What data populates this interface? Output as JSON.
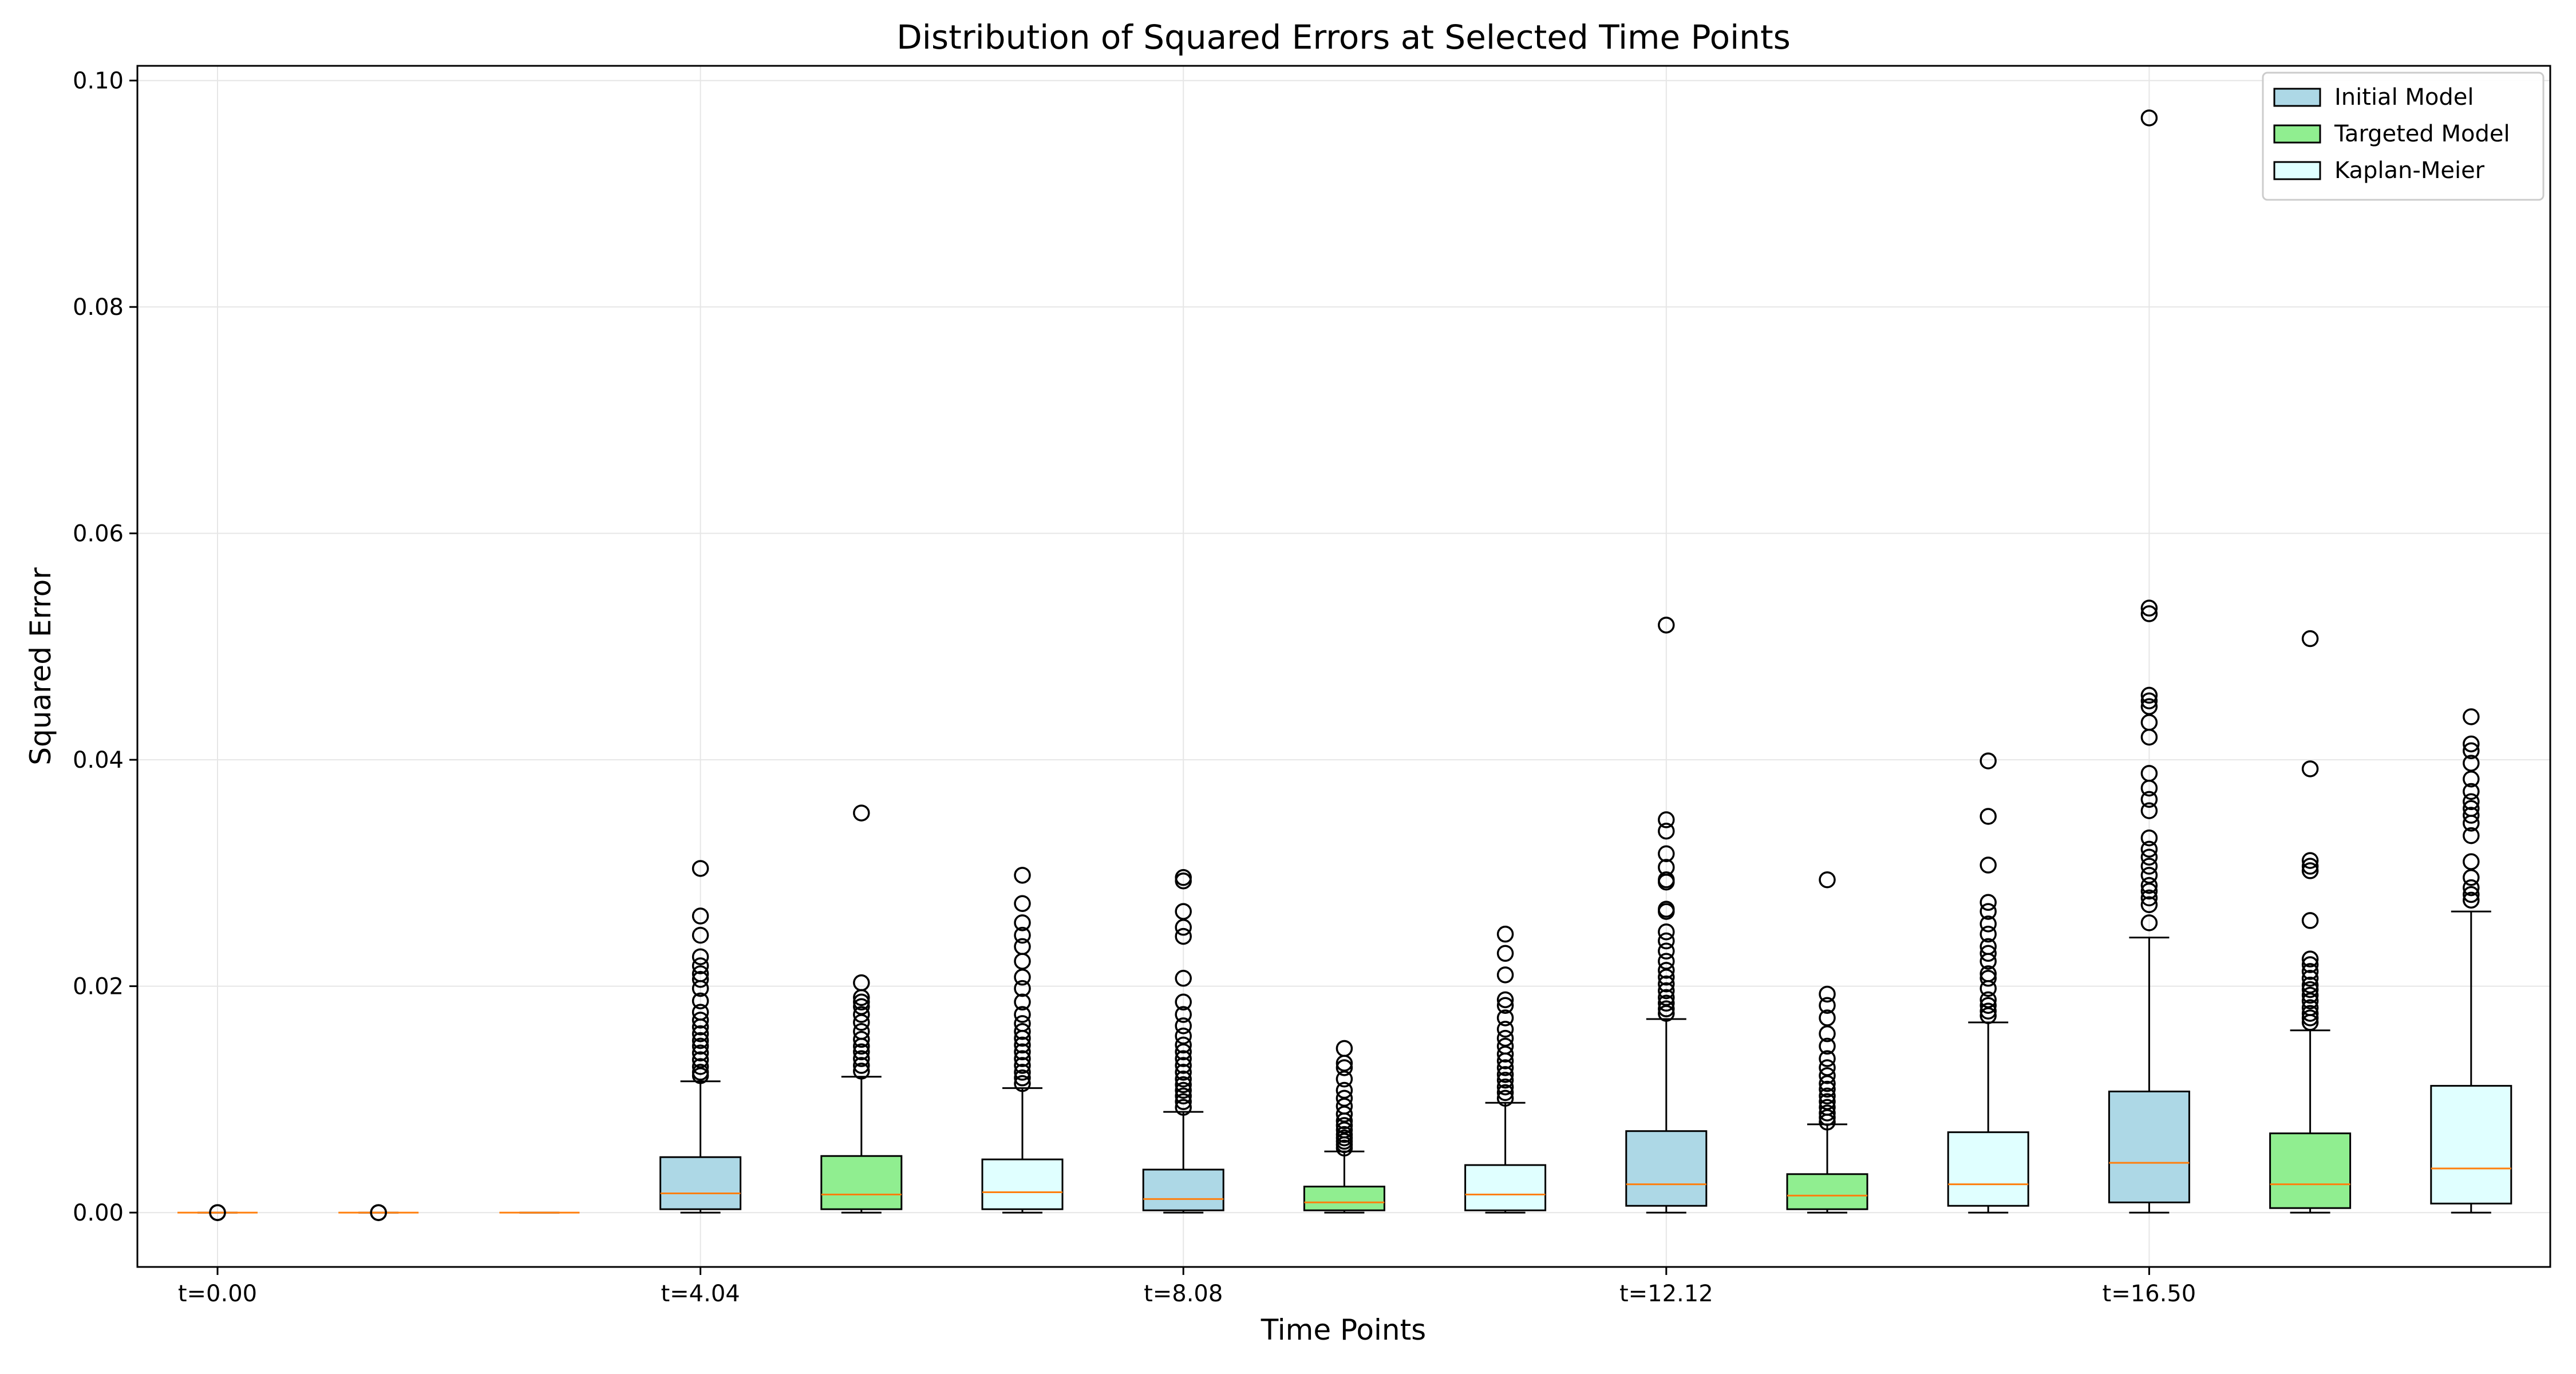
{
  "chart_data": {
    "type": "box",
    "title": "Distribution of Squared Errors at Selected Time Points",
    "xlabel": "Time Points",
    "ylabel": "Squared Error",
    "ylim": [
      -0.0048,
      0.1013
    ],
    "y_ticks": [
      0.0,
      0.02,
      0.04,
      0.06,
      0.08,
      0.1
    ],
    "y_tick_labels": [
      "0.00",
      "0.02",
      "0.04",
      "0.06",
      "0.08",
      "0.10"
    ],
    "x_tick_labels": [
      "t=0.00",
      "t=4.04",
      "t=8.08",
      "t=12.12",
      "t=16.50"
    ],
    "grid": true,
    "legend_position": "top-right",
    "colors": {
      "Initial Model": "#add8e6",
      "Targeted Model": "#90ee90",
      "Kaplan-Meier": "#e0ffff",
      "median": "#ff7f0e",
      "edge": "#000000",
      "grid": "#e6e6e6"
    },
    "series": [
      {
        "name": "Initial Model",
        "boxes": [
          {
            "time": "t=0.00",
            "q1": 0.0,
            "median": 0.0,
            "q3": 0.0,
            "whisker_low": 0.0,
            "whisker_high": 0.0,
            "outliers": [
              0.0,
              0.0
            ]
          },
          {
            "time": "t=4.04",
            "q1": 0.0003,
            "median": 0.0017,
            "q3": 0.0049,
            "whisker_low": 0.0,
            "whisker_high": 0.0116,
            "outliers": [
              0.0121,
              0.0124,
              0.0129,
              0.0135,
              0.0141,
              0.0147,
              0.0152,
              0.0158,
              0.0164,
              0.017,
              0.0177,
              0.0187,
              0.0198,
              0.0206,
              0.0211,
              0.0218,
              0.0226,
              0.0245,
              0.0262,
              0.0304
            ]
          },
          {
            "time": "t=8.08",
            "q1": 0.0002,
            "median": 0.0012,
            "q3": 0.0038,
            "whisker_low": 0.0,
            "whisker_high": 0.0089,
            "outliers": [
              0.0093,
              0.0098,
              0.0103,
              0.0108,
              0.0113,
              0.0118,
              0.0124,
              0.013,
              0.0136,
              0.0142,
              0.0148,
              0.0156,
              0.0165,
              0.0175,
              0.0186,
              0.0207,
              0.0244,
              0.0252,
              0.0266,
              0.0293,
              0.0296
            ]
          },
          {
            "time": "t=12.12",
            "q1": 0.0006,
            "median": 0.0025,
            "q3": 0.0072,
            "whisker_low": 0.0,
            "whisker_high": 0.0171,
            "outliers": [
              0.0176,
              0.018,
              0.0185,
              0.019,
              0.0196,
              0.0202,
              0.0208,
              0.0214,
              0.0222,
              0.0231,
              0.024,
              0.0248,
              0.0266,
              0.0268,
              0.0292,
              0.0294,
              0.0305,
              0.0317,
              0.0337,
              0.0347,
              0.0519
            ]
          },
          {
            "time": "t=16.50",
            "q1": 0.0009,
            "median": 0.0044,
            "q3": 0.0107,
            "whisker_low": 0.0,
            "whisker_high": 0.0243,
            "outliers": [
              0.0256,
              0.0272,
              0.0278,
              0.0284,
              0.0289,
              0.0298,
              0.0306,
              0.0314,
              0.0321,
              0.0331,
              0.0355,
              0.0365,
              0.0375,
              0.0388,
              0.042,
              0.0433,
              0.0447,
              0.0452,
              0.0457,
              0.0529,
              0.0534,
              0.0967
            ]
          }
        ]
      },
      {
        "name": "Targeted Model",
        "boxes": [
          {
            "time": "t=0.00",
            "q1": 0.0,
            "median": 0.0,
            "q3": 0.0,
            "whisker_low": 0.0,
            "whisker_high": 0.0,
            "outliers": [
              0.0,
              0.0
            ]
          },
          {
            "time": "t=4.04",
            "q1": 0.0003,
            "median": 0.0016,
            "q3": 0.005,
            "whisker_low": 0.0,
            "whisker_high": 0.012,
            "outliers": [
              0.0125,
              0.013,
              0.0136,
              0.0142,
              0.0147,
              0.0153,
              0.016,
              0.0168,
              0.0175,
              0.0182,
              0.0186,
              0.019,
              0.0203,
              0.0353
            ]
          },
          {
            "time": "t=8.08",
            "q1": 0.0002,
            "median": 0.0009,
            "q3": 0.0023,
            "whisker_low": 0.0,
            "whisker_high": 0.0054,
            "outliers": [
              0.0057,
              0.006,
              0.0063,
              0.0066,
              0.0069,
              0.0073,
              0.0077,
              0.0081,
              0.0087,
              0.0094,
              0.0101,
              0.0108,
              0.0118,
              0.0128,
              0.0132,
              0.0145
            ]
          },
          {
            "time": "t=12.12",
            "q1": 0.0003,
            "median": 0.0015,
            "q3": 0.0034,
            "whisker_low": 0.0,
            "whisker_high": 0.0078,
            "outliers": [
              0.008,
              0.0084,
              0.0088,
              0.0093,
              0.0098,
              0.0103,
              0.0109,
              0.0114,
              0.0121,
              0.0128,
              0.0136,
              0.0147,
              0.0158,
              0.0172,
              0.0183,
              0.0193,
              0.0294
            ]
          },
          {
            "time": "t=16.50",
            "q1": 0.0004,
            "median": 0.0025,
            "q3": 0.007,
            "whisker_low": 0.0,
            "whisker_high": 0.0161,
            "outliers": [
              0.0168,
              0.0172,
              0.0176,
              0.0181,
              0.0187,
              0.0192,
              0.0197,
              0.0201,
              0.0207,
              0.0213,
              0.0219,
              0.0224,
              0.0258,
              0.0302,
              0.0306,
              0.0311,
              0.0392,
              0.0507
            ]
          }
        ]
      },
      {
        "name": "Kaplan-Meier",
        "boxes": [
          {
            "time": "t=0.00",
            "q1": 0.0,
            "median": 0.0,
            "q3": 0.0,
            "whisker_low": 0.0,
            "whisker_high": 0.0,
            "outliers": []
          },
          {
            "time": "t=4.04",
            "q1": 0.0003,
            "median": 0.0018,
            "q3": 0.0047,
            "whisker_low": 0.0,
            "whisker_high": 0.011,
            "outliers": [
              0.0114,
              0.0119,
              0.0124,
              0.013,
              0.0136,
              0.0142,
              0.0148,
              0.0154,
              0.016,
              0.0167,
              0.0175,
              0.0186,
              0.0198,
              0.0208,
              0.0222,
              0.0235,
              0.0245,
              0.0256,
              0.0273,
              0.0298
            ]
          },
          {
            "time": "t=8.08",
            "q1": 0.0002,
            "median": 0.0016,
            "q3": 0.0042,
            "whisker_low": 0.0,
            "whisker_high": 0.0097,
            "outliers": [
              0.0101,
              0.0106,
              0.0111,
              0.0117,
              0.0122,
              0.0128,
              0.0134,
              0.014,
              0.0147,
              0.0154,
              0.0162,
              0.0172,
              0.0183,
              0.0188,
              0.021,
              0.0229,
              0.0246
            ]
          },
          {
            "time": "t=12.12",
            "q1": 0.0006,
            "median": 0.0025,
            "q3": 0.0071,
            "whisker_low": 0.0,
            "whisker_high": 0.0168,
            "outliers": [
              0.0174,
              0.0178,
              0.0183,
              0.0188,
              0.0198,
              0.0207,
              0.0211,
              0.0222,
              0.0229,
              0.0235,
              0.0246,
              0.0255,
              0.0266,
              0.0274,
              0.0307,
              0.035,
              0.0399
            ]
          },
          {
            "time": "t=16.50",
            "q1": 0.0008,
            "median": 0.0039,
            "q3": 0.0112,
            "whisker_low": 0.0,
            "whisker_high": 0.0266,
            "outliers": [
              0.0276,
              0.0281,
              0.0287,
              0.0296,
              0.031,
              0.0333,
              0.0344,
              0.0351,
              0.0357,
              0.0363,
              0.0372,
              0.0383,
              0.0397,
              0.0408,
              0.0414,
              0.0438
            ]
          }
        ]
      }
    ]
  }
}
